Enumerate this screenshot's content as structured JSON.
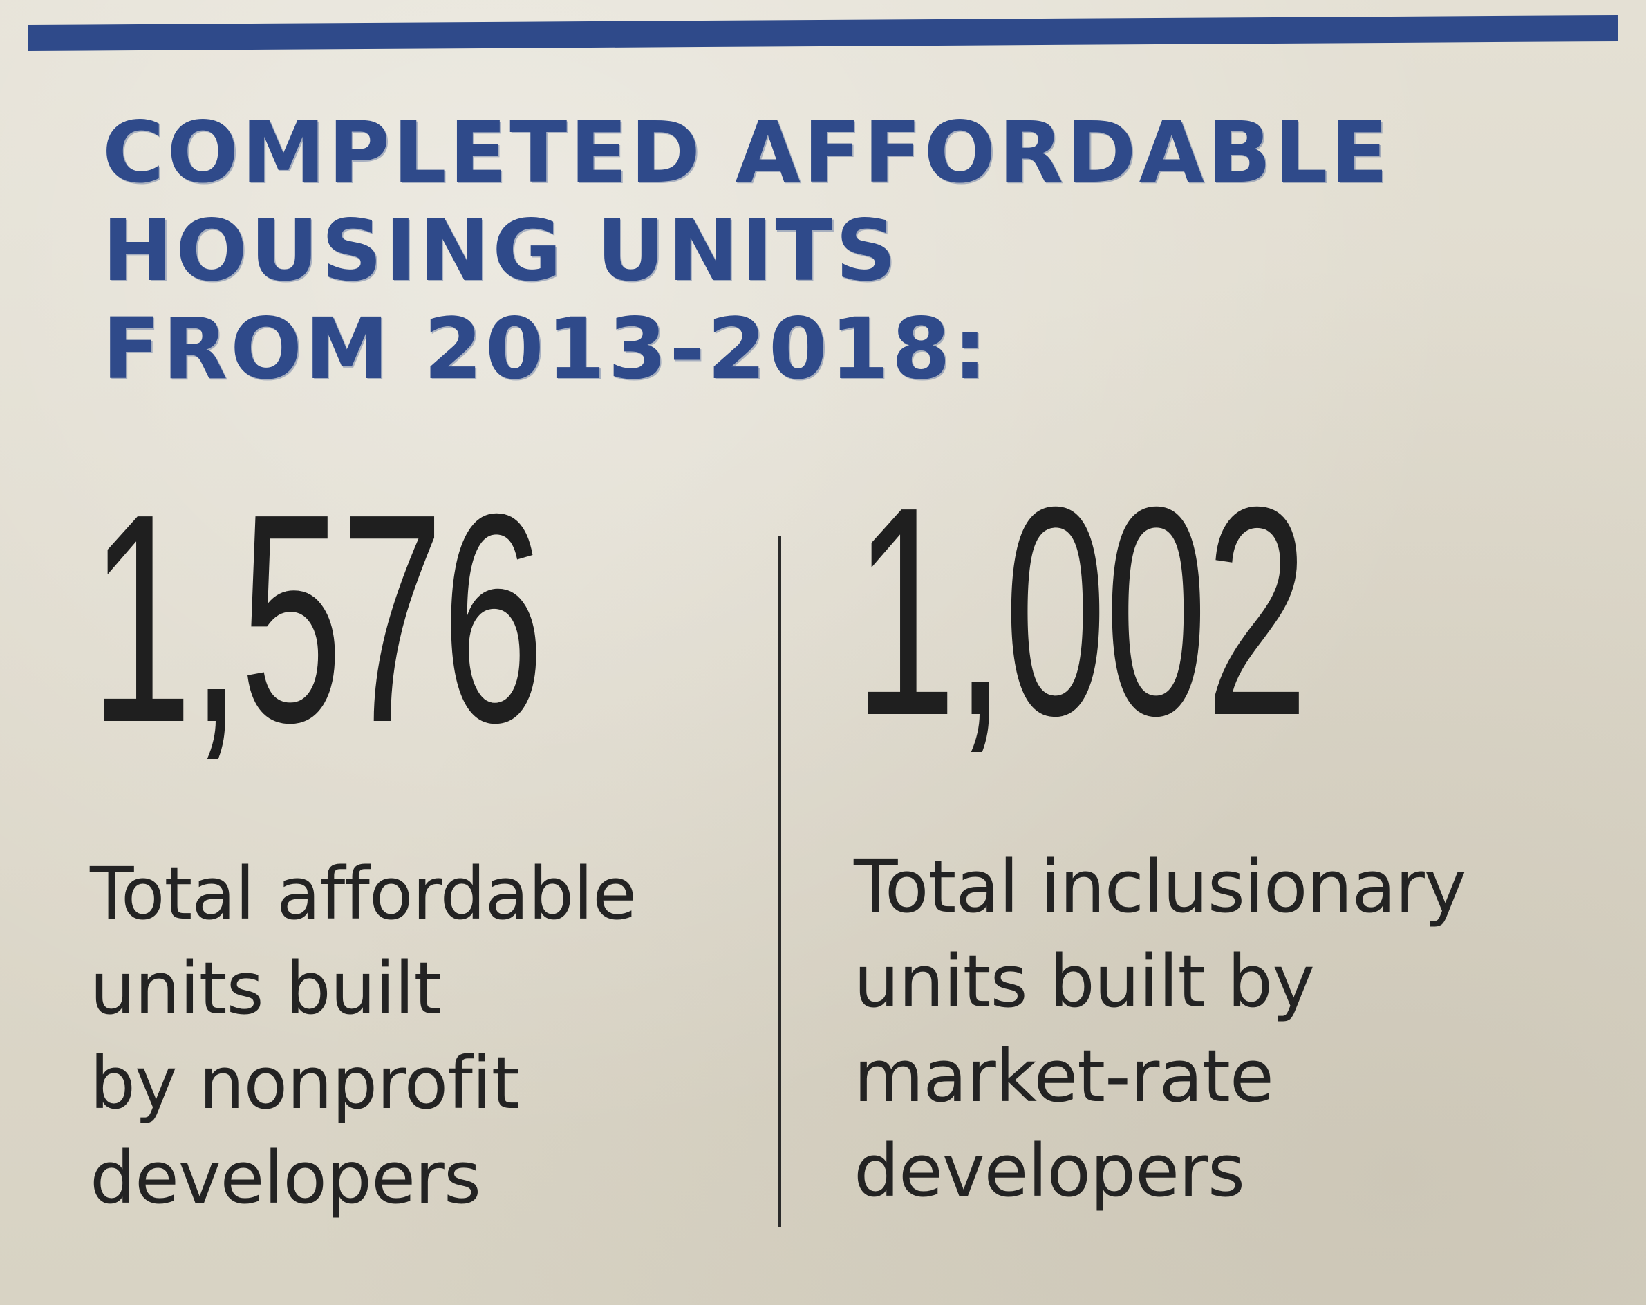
{
  "title": "COMPLETED AFFORDABLE\nHOUSING UNITS\nFROM 2013-2018:",
  "stats": [
    {
      "number": "1,576",
      "description": "Total affordable\nunits built\nby nonprofit\ndevelopers"
    },
    {
      "number": "1,002",
      "description": "Total inclusionary\nunits built by\nmarket-rate\ndevelopers"
    }
  ],
  "colors": {
    "accent": "#2f4a8a",
    "text": "#1f1f1f",
    "paper": "#e4e0d4"
  }
}
